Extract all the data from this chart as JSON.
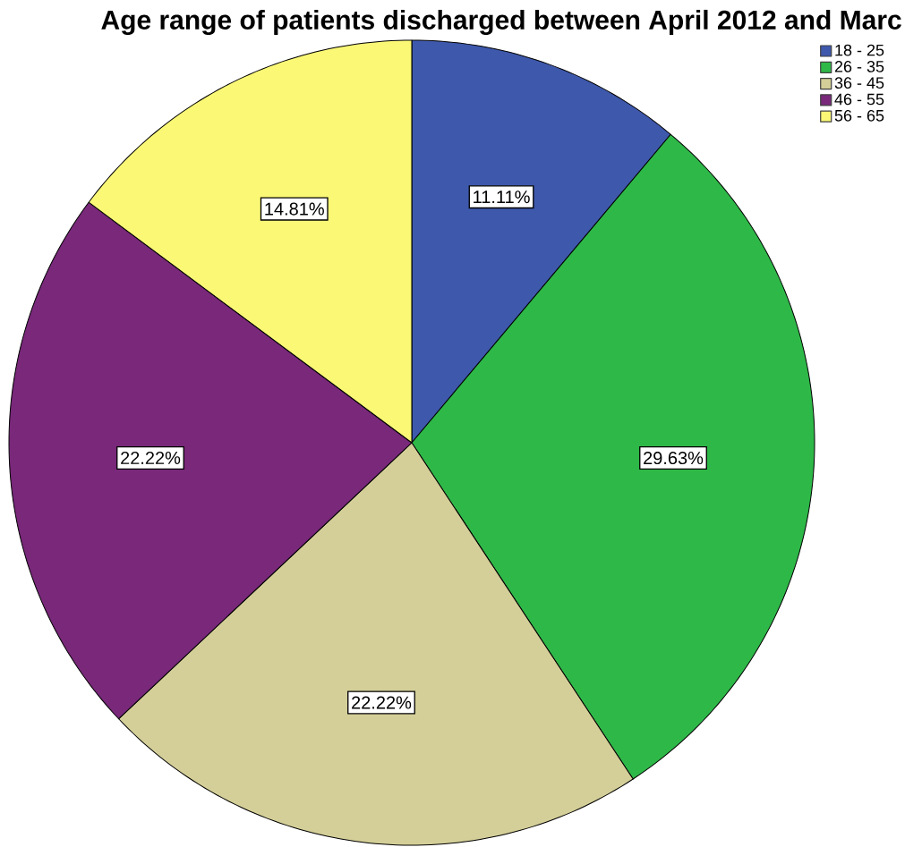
{
  "chart_data": {
    "type": "pie",
    "title": "Age range of patients discharged between April 2012 and Marc",
    "categories": [
      "18 - 25",
      "26 - 35",
      "36 - 45",
      "46 - 55",
      "56 - 65"
    ],
    "values": [
      11.11,
      29.63,
      22.22,
      22.22,
      14.81
    ],
    "colors": [
      "#3e58ac",
      "#2eb848",
      "#d4cf98",
      "#79287a",
      "#fbf876"
    ],
    "value_labels": [
      "11.11%",
      "29.63%",
      "22.22%",
      "22.22%",
      "14.81%"
    ],
    "legend": "top right"
  }
}
